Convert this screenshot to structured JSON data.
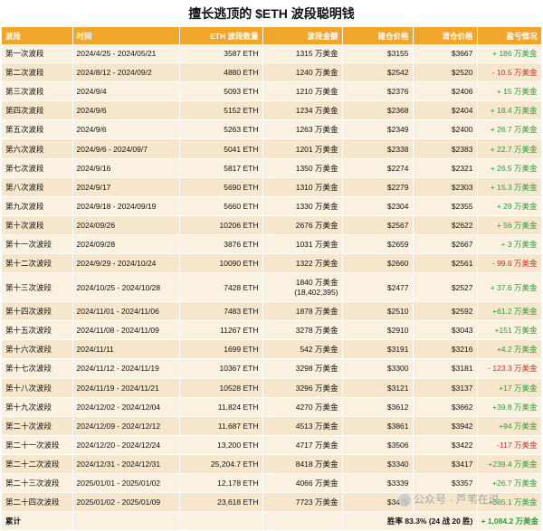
{
  "title": "擅长逃顶的 $ETH 波段聪明钱",
  "headers": [
    "波段",
    "时间",
    "ETH 波段数量",
    "波段金额",
    "建仓价格",
    "清仓价格",
    "盈亏情况"
  ],
  "rows": [
    {
      "wave": "第一次波段",
      "time": "2024/4/25 - 2024/05/21",
      "qty": "3587 ETH",
      "amount": "1315 万美金",
      "buy": "$3155",
      "sell": "$3667",
      "pnl": "+ 186 万美金",
      "sign": "pos"
    },
    {
      "wave": "第二次波段",
      "time": "2024/8/12 - 2024/09/2",
      "qty": "4880 ETH",
      "amount": "1240 万美金",
      "buy": "$2542",
      "sell": "$2520",
      "pnl": "- 10.5 万美金",
      "sign": "neg"
    },
    {
      "wave": "第三次波段",
      "time": "2024/9/4",
      "qty": "5093 ETH",
      "amount": "1210 万美金",
      "buy": "$2376",
      "sell": "$2406",
      "pnl": "+ 15 万美金",
      "sign": "pos"
    },
    {
      "wave": "第四次波段",
      "time": "2024/9/6",
      "qty": "5152 ETH",
      "amount": "1234 万美金",
      "buy": "$2368",
      "sell": "$2404",
      "pnl": "+ 18.4 万美金",
      "sign": "pos"
    },
    {
      "wave": "第五次波段",
      "time": "2024/9/6",
      "qty": "5263 ETH",
      "amount": "1263 万美金",
      "buy": "$2349",
      "sell": "$2400",
      "pnl": "+ 26.7 万美金",
      "sign": "pos"
    },
    {
      "wave": "第六次波段",
      "time": "2024/9/6 - 2024/09/7",
      "qty": "5041 ETH",
      "amount": "1201 万美金",
      "buy": "$2338",
      "sell": "$2383",
      "pnl": "+ 22.7 万美金",
      "sign": "pos"
    },
    {
      "wave": "第七次波段",
      "time": "2024/9/16",
      "qty": "5817 ETH",
      "amount": "1350 万美金",
      "buy": "$2274",
      "sell": "$2321",
      "pnl": "+ 26.5 万美金",
      "sign": "pos"
    },
    {
      "wave": "第八次波段",
      "time": "2024/9/17",
      "qty": "5690 ETH",
      "amount": "1310 万美金",
      "buy": "$2279",
      "sell": "$2303",
      "pnl": "+ 15.3 万美金",
      "sign": "pos"
    },
    {
      "wave": "第九次波段",
      "time": "2024/9/18 - 2024/09/19",
      "qty": "5660 ETH",
      "amount": "1330 万美金",
      "buy": "$2304",
      "sell": "$2355",
      "pnl": "+ 29 万美金",
      "sign": "pos"
    },
    {
      "wave": "第十次波段",
      "time": "2024/09/26",
      "qty": "10206 ETH",
      "amount": "2676 万美金",
      "buy": "$2567",
      "sell": "$2622",
      "pnl": "+ 56 万美金",
      "sign": "pos"
    },
    {
      "wave": "第十一次波段",
      "time": "2024/09/28",
      "qty": "3876 ETH",
      "amount": "1031 万美金",
      "buy": "$2659",
      "sell": "$2667",
      "pnl": "+ 3 万美金",
      "sign": "pos"
    },
    {
      "wave": "第十二次波段",
      "time": "2024/9/29 - 2024/10/24",
      "qty": "10090 ETH",
      "amount": "1322 万美金",
      "buy": "$2660",
      "sell": "$2561",
      "pnl": "- 99.6 万美金",
      "sign": "neg"
    },
    {
      "wave": "第十三次波段",
      "time": "2024/10/25 - 2024/10/28",
      "qty": "7428 ETH",
      "amount": "1840 万美金",
      "amount2": "(18,402,395)",
      "buy": "$2477",
      "sell": "$2527",
      "pnl": "+ 37.6 万美金",
      "sign": "pos"
    },
    {
      "wave": "第十四次波段",
      "time": "2024/11/01 - 2024/11/06",
      "qty": "7483 ETH",
      "amount": "1878 万美金",
      "buy": "$2510",
      "sell": "$2592",
      "pnl": "+61.2 万美金",
      "sign": "pos"
    },
    {
      "wave": "第十五次波段",
      "time": "2024/11/08 - 2024/11/09",
      "qty": "11267 ETH",
      "amount": "3278 万美金",
      "buy": "$2910",
      "sell": "$3043",
      "pnl": "+151 万美金",
      "sign": "pos"
    },
    {
      "wave": "第十六次波段",
      "time": "2024/11/11",
      "qty": "1699 ETH",
      "amount": "542 万美金",
      "buy": "$3191",
      "sell": "$3216",
      "pnl": "+4.2 万美金",
      "sign": "pos"
    },
    {
      "wave": "第十七次波段",
      "time": "2024/11/12 - 2024/11/19",
      "qty": "10367 ETH",
      "amount": "3298 万美金",
      "buy": "$3300",
      "sell": "$3181",
      "pnl": "- 123.3 万美金",
      "sign": "neg"
    },
    {
      "wave": "第十八次波段",
      "time": "2024/11/19 - 2024/11/21",
      "qty": "10528 ETH",
      "amount": "3296 万美金",
      "buy": "$3121",
      "sell": "$3137",
      "pnl": "+17 万美金",
      "sign": "pos"
    },
    {
      "wave": "第十九次波段",
      "time": "2024/12/02 - 2024/12/04",
      "qty": "11,824 ETH",
      "amount": "4270 万美金",
      "buy": "$3612",
      "sell": "$3662",
      "pnl": "+39.8 万美金",
      "sign": "pos"
    },
    {
      "wave": "第二十次波段",
      "time": "2024/12/09 - 2024/12/12",
      "qty": "11,687 ETH",
      "amount": "4513 万美金",
      "buy": "$3861",
      "sell": "$3942",
      "pnl": "+94 万美金",
      "sign": "pos"
    },
    {
      "wave": "第二十一次波段",
      "time": "2024/12/20 - 2024/12/24",
      "qty": "13,200 ETH",
      "amount": "4717 万美金",
      "buy": "$3506",
      "sell": "$3422",
      "pnl": "-117 万美金",
      "sign": "neg"
    },
    {
      "wave": "第二十二次波段",
      "time": "2024/12/31 - 2024/12/31",
      "qty": "25,204.7 ETH",
      "amount": "8418 万美金",
      "buy": "$3340",
      "sell": "$3417",
      "pnl": "+239.4 万美金",
      "sign": "pos"
    },
    {
      "wave": "第二十三次波段",
      "time": "2025/01/01 - 2025/01/02",
      "qty": "12,178 ETH",
      "amount": "4066 万美金",
      "buy": "$3339",
      "sell": "$3357",
      "pnl": "+26.7 万美金",
      "sign": "pos"
    },
    {
      "wave": "第二十四次波段",
      "time": "2025/01/02 - 2025/01/09",
      "qty": "23,618 ETH",
      "amount": "7723 万美金",
      "buy": "$3475",
      "sell": "",
      "pnl": "+365.1 万美金",
      "sign": "pos"
    }
  ],
  "total": {
    "label": "累计",
    "winrate": "胜率 83.3% (24 战 20 胜)",
    "pnl": "+ 1,084.2 万美金"
  },
  "watermark": "公众号 · 芦苇在说",
  "colors": {
    "header": "#f1a52b",
    "positive": "#2e9a3a",
    "negative": "#c8332a"
  }
}
